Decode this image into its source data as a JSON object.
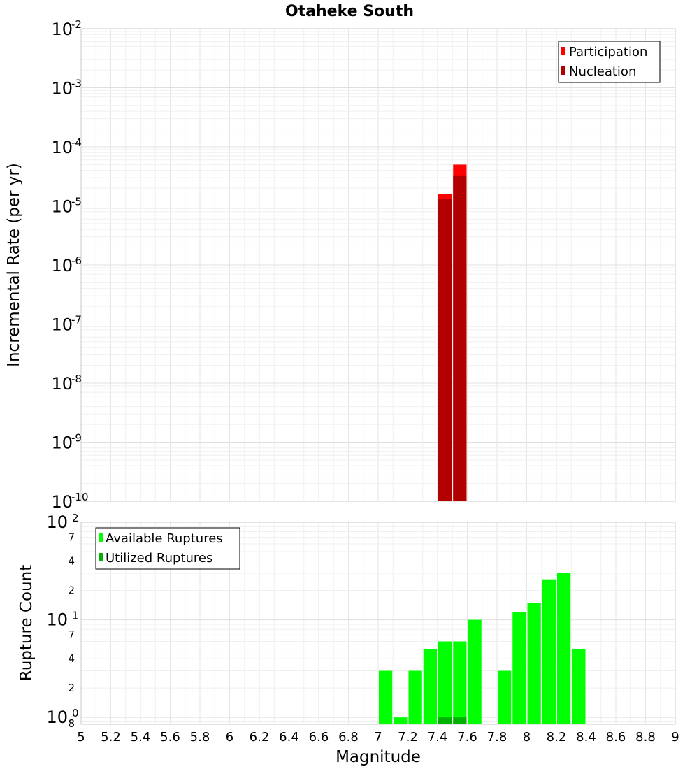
{
  "chart_data": [
    {
      "type": "bar",
      "title": "Otaheke South",
      "xlabel": "",
      "ylabel": "Incremental Rate (per yr)",
      "yscale": "log",
      "xlim": [
        5,
        9
      ],
      "ylim": [
        1e-10,
        0.01
      ],
      "bar_width": 0.1,
      "y_major_ticks": [
        {
          "base": "10",
          "exp": "-2",
          "value": 0.01
        },
        {
          "base": "10",
          "exp": "-3",
          "value": 0.001
        },
        {
          "base": "10",
          "exp": "-4",
          "value": 0.0001
        },
        {
          "base": "10",
          "exp": "-5",
          "value": 1e-05
        },
        {
          "base": "10",
          "exp": "-6",
          "value": 1e-06
        },
        {
          "base": "10",
          "exp": "-7",
          "value": 1e-07
        },
        {
          "base": "10",
          "exp": "-8",
          "value": 1e-08
        },
        {
          "base": "10",
          "exp": "-9",
          "value": 1e-09
        },
        {
          "base": "10",
          "exp": "-10",
          "value": 1e-10
        }
      ],
      "legend_position": "top-right",
      "series": [
        {
          "name": "Participation",
          "color": "#ff0000",
          "x": [
            7.45,
            7.55
          ],
          "values": [
            1.6e-05,
            5e-05
          ]
        },
        {
          "name": "Nucleation",
          "color": "#b20000",
          "x": [
            7.45,
            7.55
          ],
          "values": [
            1.3e-05,
            3.2e-05
          ]
        }
      ]
    },
    {
      "type": "bar",
      "title": "",
      "xlabel": "Magnitude",
      "ylabel": "Rupture Count",
      "yscale": "log",
      "xlim": [
        5,
        9
      ],
      "ylim": [
        0.85,
        100
      ],
      "bar_width": 0.1,
      "x_tick_labels": [
        "5",
        "5.2",
        "5.4",
        "5.6",
        "5.8",
        "6",
        "6.2",
        "6.4",
        "6.6",
        "6.8",
        "7",
        "7.2",
        "7.4",
        "7.6",
        "7.8",
        "8",
        "8.2",
        "8.4",
        "8.6",
        "8.8",
        "9"
      ],
      "y_major_ticks": [
        {
          "base": "10",
          "exp": "2",
          "value": 100
        },
        {
          "base": "10",
          "exp": "1",
          "value": 10
        },
        {
          "base": "10",
          "exp": "0",
          "value": 1
        }
      ],
      "y_minor_ticks": [
        {
          "label": "7",
          "value": 70
        },
        {
          "label": "4",
          "value": 40
        },
        {
          "label": "2",
          "value": 20
        },
        {
          "label": "7",
          "value": 7
        },
        {
          "label": "4",
          "value": 4
        },
        {
          "label": "2",
          "value": 2
        },
        {
          "label": "8",
          "value": 0.86
        }
      ],
      "legend_position": "top-left",
      "series": [
        {
          "name": "Available Ruptures",
          "color": "#00ff00",
          "x": [
            7.05,
            7.15,
            7.25,
            7.35,
            7.45,
            7.55,
            7.65,
            7.85,
            7.95,
            8.05,
            8.15,
            8.25,
            8.35
          ],
          "values": [
            3,
            1,
            3,
            5,
            6,
            6,
            10,
            3,
            12,
            15,
            26,
            30,
            5
          ]
        },
        {
          "name": "Utilized Ruptures",
          "color": "#00b200",
          "x": [
            7.45,
            7.55
          ],
          "values": [
            1,
            1
          ]
        }
      ]
    }
  ]
}
